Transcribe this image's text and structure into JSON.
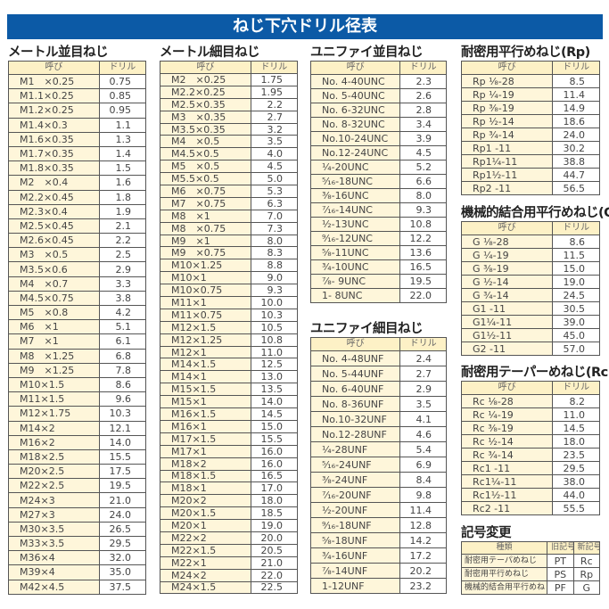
{
  "title": "ねじ下穴ドリル径表",
  "header_nominal": "呼び",
  "header_drill": "ドリル",
  "tables": [
    {
      "heading": "メートル並目ねじ",
      "rows": [
        [
          "M1　×0.25",
          "0.75"
        ],
        [
          "M1.1×0.25",
          "0.85"
        ],
        [
          "M1.2×0.25",
          "0.95"
        ],
        [
          "M1.4×0.3",
          "1.1"
        ],
        [
          "M1.6×0.35",
          "1.3"
        ],
        [
          "M1.7×0.35",
          "1.4"
        ],
        [
          "M1.8×0.35",
          "1.5"
        ],
        [
          "M2　×0.4",
          "1.6"
        ],
        [
          "M2.2×0.45",
          "1.8"
        ],
        [
          "M2.3×0.4",
          "1.9"
        ],
        [
          "M2.5×0.45",
          "2.1"
        ],
        [
          "M2.6×0.45",
          "2.2"
        ],
        [
          "M3　×0.5",
          "2.5"
        ],
        [
          "M3.5×0.6",
          "2.9"
        ],
        [
          "M4　×0.7",
          "3.3"
        ],
        [
          "M4.5×0.75",
          "3.8"
        ],
        [
          "M5　×0.8",
          "4.2"
        ],
        [
          "M6　×1",
          "5.1"
        ],
        [
          "M7　×1",
          "6.1"
        ],
        [
          "M8　×1.25",
          "6.8"
        ],
        [
          "M9　×1.25",
          "7.8"
        ],
        [
          "M10×1.5",
          "8.6"
        ],
        [
          "M11×1.5",
          "9.6"
        ],
        [
          "M12×1.75",
          "10.3"
        ],
        [
          "M14×2",
          "12.1"
        ],
        [
          "M16×2",
          "14.0"
        ],
        [
          "M18×2.5",
          "15.5"
        ],
        [
          "M20×2.5",
          "17.5"
        ],
        [
          "M22×2.5",
          "19.5"
        ],
        [
          "M24×3",
          "21.0"
        ],
        [
          "M27×3",
          "24.0"
        ],
        [
          "M30×3.5",
          "26.5"
        ],
        [
          "M33×3.5",
          "29.5"
        ],
        [
          "M36×4",
          "32.0"
        ],
        [
          "M39×4",
          "35.0"
        ],
        [
          "M42×4.5",
          "37.5"
        ]
      ]
    },
    {
      "heading": "メートル細目ねじ",
      "rows": [
        [
          "M2　×0.25",
          "1.75"
        ],
        [
          "M2.2×0.25",
          "1.95"
        ],
        [
          "M2.5×0.35",
          "2.2"
        ],
        [
          "M3　×0.35",
          "2.7"
        ],
        [
          "M3.5×0.35",
          "3.2"
        ],
        [
          "M4　×0.5",
          "3.5"
        ],
        [
          "M4.5×0.5",
          "4.0"
        ],
        [
          "M5　×0.5",
          "4.5"
        ],
        [
          "M5.5×0.5",
          "5.0"
        ],
        [
          "M6　×0.75",
          "5.3"
        ],
        [
          "M7　×0.75",
          "6.3"
        ],
        [
          "M8　×1",
          "7.0"
        ],
        [
          "M8　×0.75",
          "7.3"
        ],
        [
          "M9　×1",
          "8.0"
        ],
        [
          "M9　×0.75",
          "8.3"
        ],
        [
          "M10×1.25",
          "8.8"
        ],
        [
          "M10×1",
          "9.0"
        ],
        [
          "M10×0.75",
          "9.3"
        ],
        [
          "M11×1",
          "10.0"
        ],
        [
          "M11×0.75",
          "10.3"
        ],
        [
          "M12×1.5",
          "10.5"
        ],
        [
          "M12×1.25",
          "10.8"
        ],
        [
          "M12×1",
          "11.0"
        ],
        [
          "M14×1.5",
          "12.5"
        ],
        [
          "M14×1",
          "13.0"
        ],
        [
          "M15×1.5",
          "13.5"
        ],
        [
          "M15×1",
          "14.0"
        ],
        [
          "M16×1.5",
          "14.5"
        ],
        [
          "M16×1",
          "15.0"
        ],
        [
          "M17×1.5",
          "15.5"
        ],
        [
          "M17×1",
          "16.0"
        ],
        [
          "M18×2",
          "16.0"
        ],
        [
          "M18×1.5",
          "16.5"
        ],
        [
          "M18×1",
          "17.0"
        ],
        [
          "M20×2",
          "18.0"
        ],
        [
          "M20×1.5",
          "18.5"
        ],
        [
          "M20×1",
          "19.0"
        ],
        [
          "M22×2",
          "20.0"
        ],
        [
          "M22×1.5",
          "20.5"
        ],
        [
          "M22×1",
          "21.0"
        ],
        [
          "M24×2",
          "22.0"
        ],
        [
          "M24×1.5",
          "22.5"
        ]
      ]
    },
    {
      "heading": "ユニファイ並目ねじ",
      "rows": [
        [
          "No.  4-40UNC",
          "2.3"
        ],
        [
          "No.  5-40UNC",
          "2.6"
        ],
        [
          "No.  6-32UNC",
          "2.8"
        ],
        [
          "No.  8-32UNC",
          "3.4"
        ],
        [
          "No.10-24UNC",
          "3.9"
        ],
        [
          "No.12-24UNC",
          "4.5"
        ],
        [
          "¹⁄₄-20UNC",
          "5.2"
        ],
        [
          "⁵⁄₁₆-18UNC",
          "6.6"
        ],
        [
          "³⁄₈-16UNC",
          "8.0"
        ],
        [
          "⁷⁄₁₆-14UNC",
          "9.3"
        ],
        [
          "¹⁄₂-13UNC",
          "10.8"
        ],
        [
          "⁹⁄₁₆-12UNC",
          "12.2"
        ],
        [
          "⁵⁄₈-11UNC",
          "13.6"
        ],
        [
          "³⁄₄-10UNC",
          "16.5"
        ],
        [
          "⁷⁄₈-  9UNC",
          "19.5"
        ],
        [
          "1-  8UNC",
          "22.0"
        ]
      ]
    },
    {
      "heading": "ユニファイ細目ねじ",
      "rows": [
        [
          "No.  4-48UNF",
          "2.4"
        ],
        [
          "No.  5-44UNF",
          "2.7"
        ],
        [
          "No.  6-40UNF",
          "2.9"
        ],
        [
          "No.  8-36UNF",
          "3.5"
        ],
        [
          "No.10-32UNF",
          "4.1"
        ],
        [
          "No.12-28UNF",
          "4.6"
        ],
        [
          "¹⁄₄-28UNF",
          "5.4"
        ],
        [
          "⁵⁄₁₆-24UNF",
          "6.9"
        ],
        [
          "³⁄₈-24UNF",
          "8.4"
        ],
        [
          "⁷⁄₁₆-20UNF",
          "9.8"
        ],
        [
          "¹⁄₂-20UNF",
          "11.4"
        ],
        [
          "⁹⁄₁₆-18UNF",
          "12.8"
        ],
        [
          "⁵⁄₈-18UNF",
          "14.2"
        ],
        [
          "³⁄₄-16UNF",
          "17.2"
        ],
        [
          "⁷⁄₈-14UNF",
          "20.2"
        ],
        [
          "1-12UNF",
          "23.2"
        ]
      ]
    },
    {
      "heading": "耐密用平行めねじ(Rp)",
      "rows": [
        [
          "Rp  ¹⁄₈-28",
          "8.5"
        ],
        [
          "Rp  ¹⁄₄-19",
          "11.4"
        ],
        [
          "Rp  ³⁄₈-19",
          "14.9"
        ],
        [
          "Rp  ¹⁄₂-14",
          "18.6"
        ],
        [
          "Rp  ³⁄₄-14",
          "24.0"
        ],
        [
          "Rp1    -11",
          "30.2"
        ],
        [
          "Rp1¹⁄₄-11",
          "38.8"
        ],
        [
          "Rp1¹⁄₂-11",
          "44.7"
        ],
        [
          "Rp2    -11",
          "56.5"
        ]
      ]
    },
    {
      "heading": "機械的結合用平行めねじ(G)",
      "rows": [
        [
          "G  ¹⁄₈-28",
          "8.6"
        ],
        [
          "G  ¹⁄₄-19",
          "11.5"
        ],
        [
          "G  ³⁄₈-19",
          "15.0"
        ],
        [
          "G  ¹⁄₂-14",
          "19.0"
        ],
        [
          "G  ³⁄₄-14",
          "24.5"
        ],
        [
          "G1    -11",
          "30.5"
        ],
        [
          "G1¹⁄₄-11",
          "39.0"
        ],
        [
          "G1¹⁄₂-11",
          "45.0"
        ],
        [
          "G2    -11",
          "57.0"
        ]
      ]
    },
    {
      "heading": "耐密用テーパーめねじ(Rc)",
      "rows": [
        [
          "Rc  ¹⁄₈-28",
          "8.2"
        ],
        [
          "Rc  ¹⁄₄-19",
          "11.0"
        ],
        [
          "Rc  ³⁄₈-19",
          "14.5"
        ],
        [
          "Rc  ¹⁄₂-14",
          "18.0"
        ],
        [
          "Rc  ³⁄₄-14",
          "23.5"
        ],
        [
          "Rc1    -11",
          "29.5"
        ],
        [
          "Rc1¹⁄₄-11",
          "38.0"
        ],
        [
          "Rc1¹⁄₂-11",
          "44.0"
        ],
        [
          "Rc2    -11",
          "55.5"
        ]
      ]
    }
  ],
  "symbol_change": {
    "heading": "記号変更",
    "headers": [
      "種類",
      "旧記号",
      "新記号"
    ],
    "rows": [
      [
        "耐密用テーパめねじ",
        "PT",
        "Rc"
      ],
      [
        "耐密用平行めねじ",
        "PS",
        "Rp"
      ],
      [
        "機械的結合用平行めねじ",
        "PF",
        "G"
      ]
    ]
  }
}
